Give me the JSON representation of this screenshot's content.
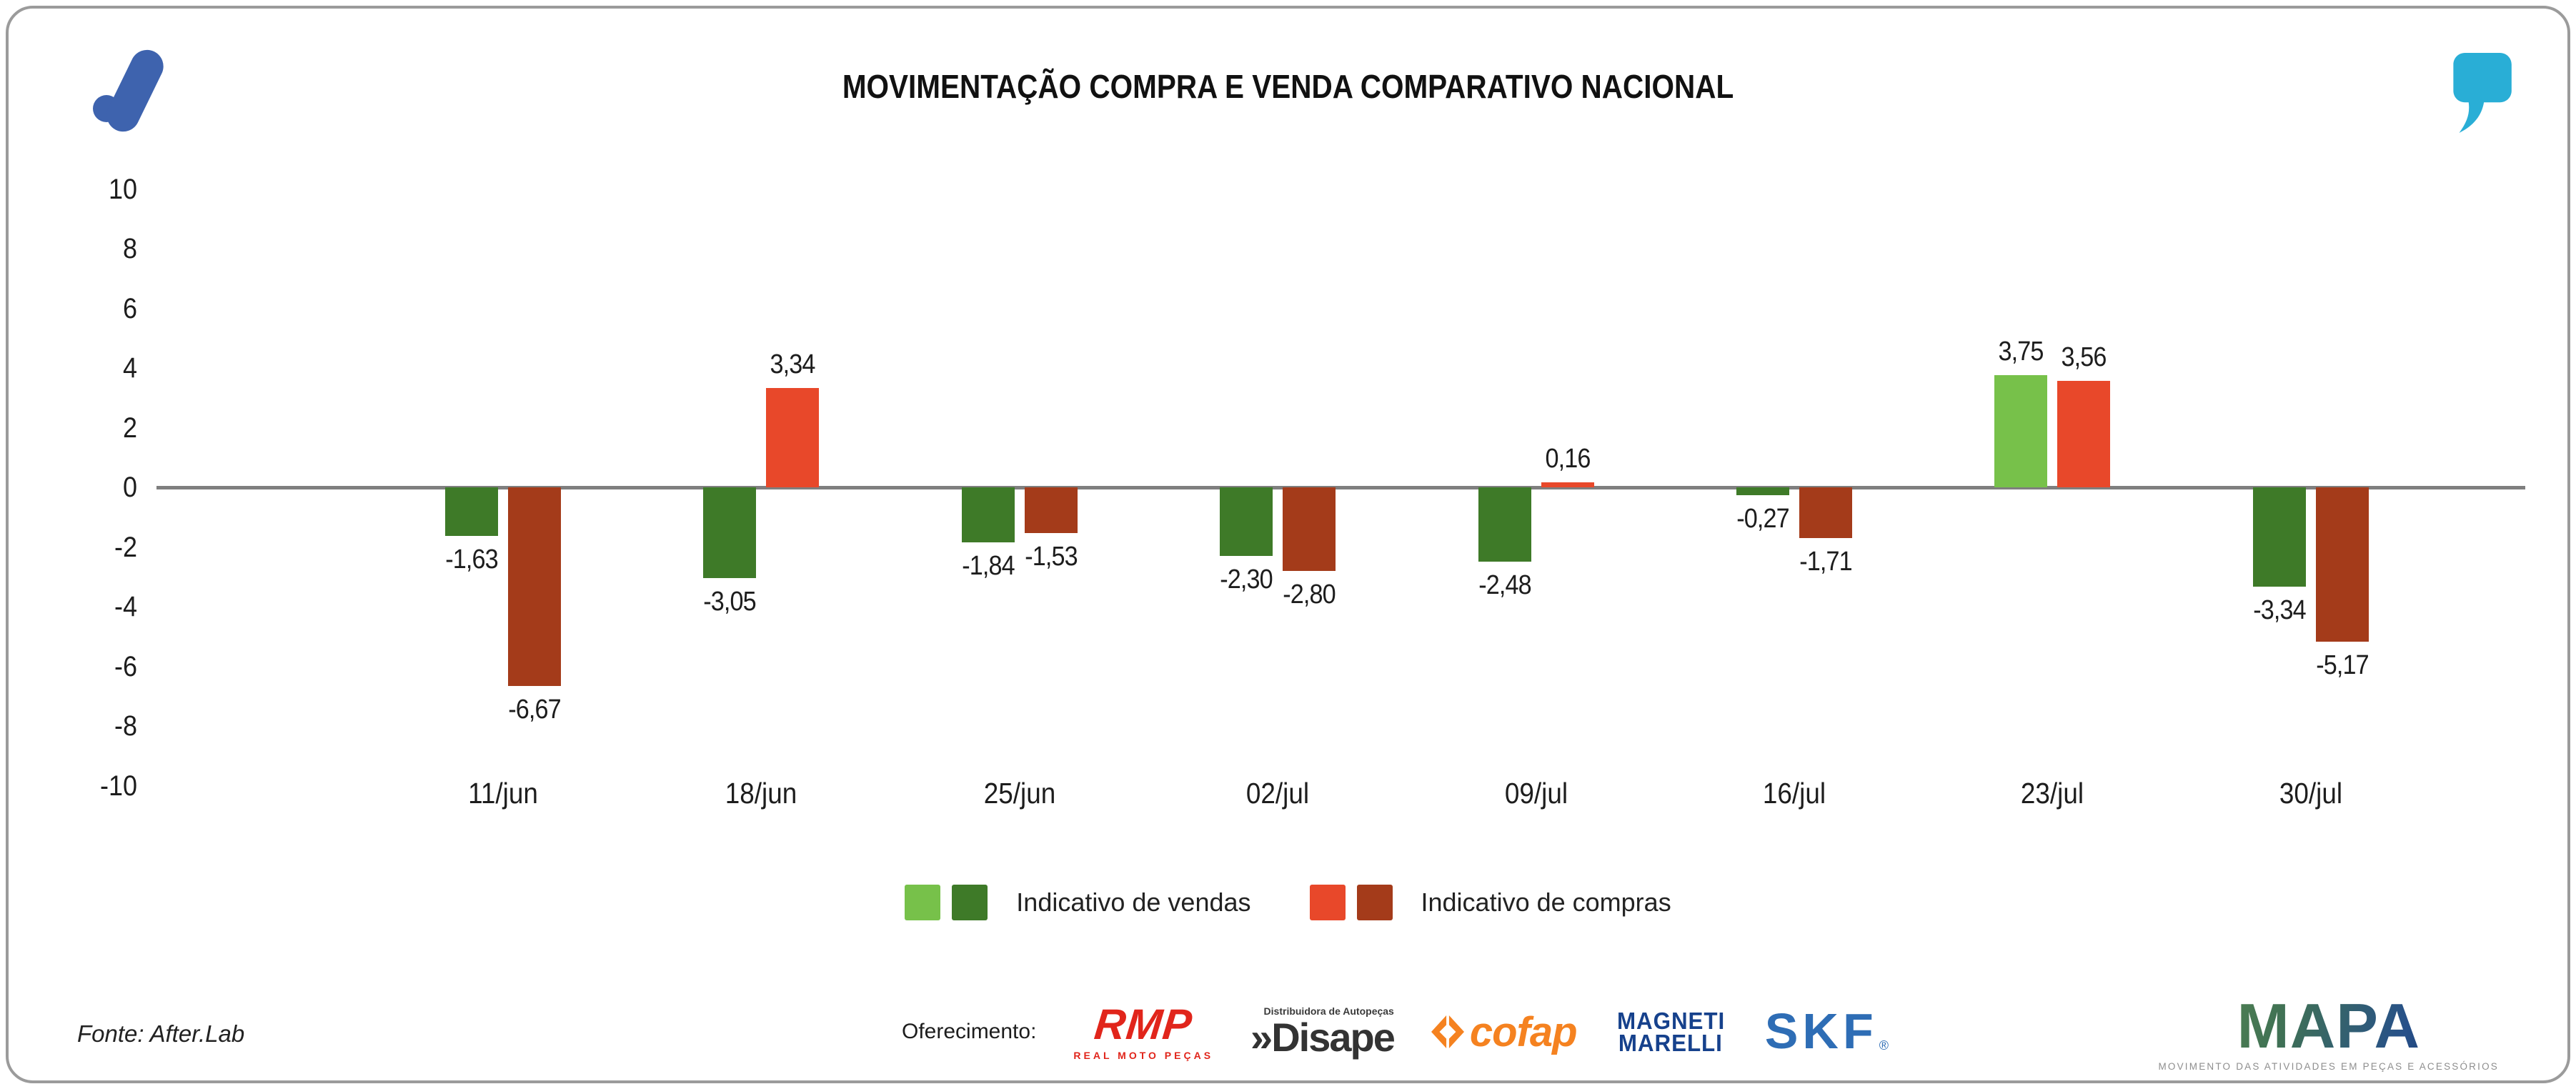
{
  "header": {
    "title": "MOVIMENTAÇÃO COMPRA E VENDA COMPARATIVO NACIONAL"
  },
  "chart_data": {
    "type": "bar",
    "title": "MOVIMENTAÇÃO COMPRA E VENDA COMPARATIVO NACIONAL",
    "categories": [
      "11/jun",
      "18/jun",
      "25/jun",
      "02/jul",
      "09/jul",
      "16/jul",
      "23/jul",
      "30/jul"
    ],
    "series": [
      {
        "name": "Indicativo de vendas",
        "values": [
          -1.63,
          -3.05,
          -1.84,
          -2.3,
          -2.48,
          -0.27,
          3.75,
          -3.34
        ],
        "labels": [
          "-1,63",
          "-3,05",
          "-1,84",
          "-2,30",
          "-2,48",
          "-0,27",
          "3,75",
          "-3,34"
        ],
        "color_positive": "#77c14a",
        "color_negative": "#3e7a28"
      },
      {
        "name": "Indicativo de compras",
        "values": [
          -6.67,
          3.34,
          -1.53,
          -2.8,
          0.16,
          -1.71,
          3.56,
          -5.17
        ],
        "labels": [
          "-6,67",
          "3,34",
          "-1,53",
          "-2,80",
          "0,16",
          "-1,71",
          "3,56",
          "-5,17"
        ],
        "color_positive": "#e8482a",
        "color_negative": "#a43b1a"
      }
    ],
    "ylim": [
      -10,
      10
    ],
    "yticks": [
      10,
      8,
      6,
      4,
      2,
      0,
      -2,
      -4,
      -6,
      -8,
      -10
    ],
    "grid": false,
    "legend_position": "bottom",
    "xlabel": "",
    "ylabel": ""
  },
  "footer": {
    "source": "Fonte: After.Lab",
    "sponsor_label": "Oferecimento:",
    "sponsors": {
      "rmp": {
        "name": "RMP",
        "tagline": "REAL MOTO PEÇAS",
        "color": "#e1251b"
      },
      "disape": {
        "prefix": "»",
        "name": "Disape",
        "tagline": "Distribuidora de Autopeças",
        "color": "#3a3a3a"
      },
      "cofap": {
        "name": "cofap",
        "color": "#f58220"
      },
      "magneti_marelli": {
        "line1": "MAGNETI",
        "line2": "MARELLI",
        "color": "#16418c"
      },
      "skf": {
        "name": "SKF",
        "reg": "®",
        "color": "#2e6db5"
      }
    },
    "mapa": {
      "name": "MAPA",
      "tagline": "MOVIMENTO DAS ATIVIDADES EM PEÇAS E ACESSÓRIOS"
    }
  },
  "colors": {
    "axis_line": "#7f7f7f",
    "text": "#1d1d1d",
    "card_border": "#9b9b9b",
    "afterlab_blue": "#3e63ae",
    "quote_cyan": "#29aed6"
  }
}
